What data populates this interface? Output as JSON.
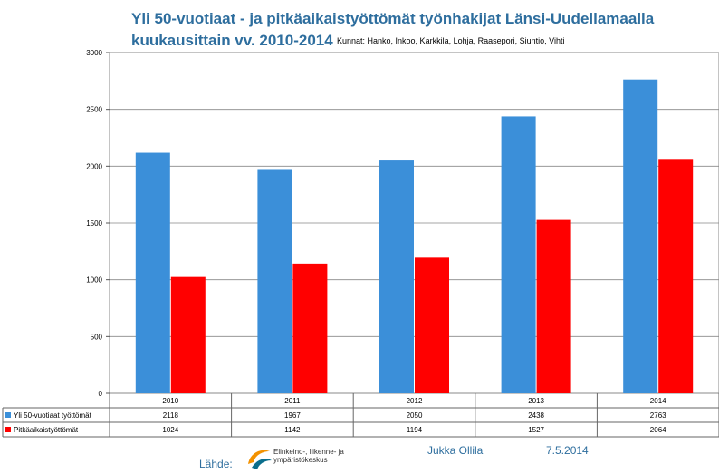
{
  "header": {
    "title_line1": "Yli 50-vuotiaat - ja pitkäaikaistyöttömät työnhakijat  Länsi-Uudellamaalla",
    "title_line2": "kuukausittain vv. 2010-2014",
    "subtitle": "Kunnat: Hanko, Inkoo, Karkkila, Lohja, Raasepori, Siuntio, Vihti"
  },
  "chart_data": {
    "type": "bar",
    "categories": [
      "2010",
      "2011",
      "2012",
      "2013",
      "2014"
    ],
    "series": [
      {
        "name": "Yli 50-vuotiaat työttömät",
        "values": [
          2118,
          1967,
          2050,
          2438,
          2763
        ],
        "color": "#3b8fd9"
      },
      {
        "name": "Pitkäaikaistyöttömät",
        "values": [
          1024,
          1142,
          1194,
          1527,
          2064
        ],
        "color": "#ff0000"
      }
    ],
    "ylim": [
      0,
      3000
    ],
    "yticks": [
      0,
      500,
      1000,
      1500,
      2000,
      2500,
      3000
    ],
    "grid": true,
    "legend": "data-table-below"
  },
  "footer": {
    "source_label": "Lähde:",
    "logo_text": "Elinkeino-, liikenne- ja\nympäristökeskus",
    "author": "Jukka Ollila",
    "date": "7.5.2014"
  }
}
